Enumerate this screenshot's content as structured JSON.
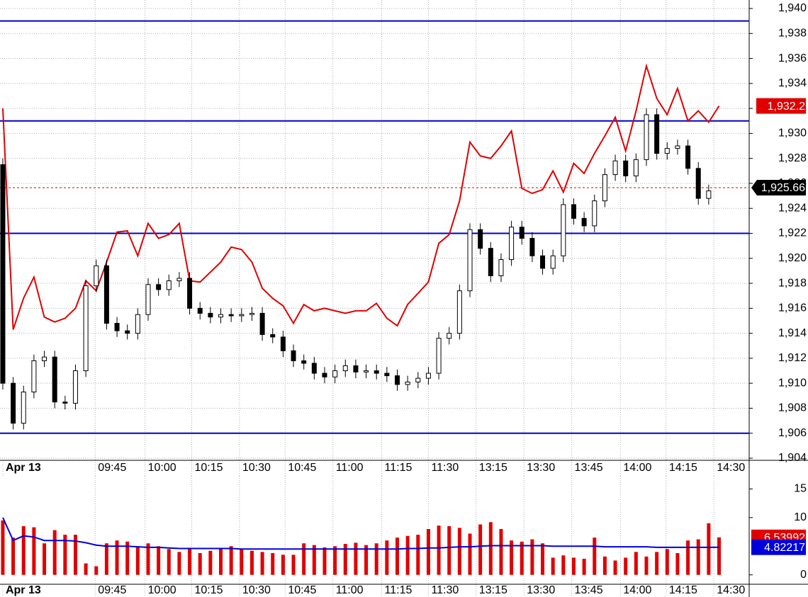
{
  "chart_data": [
    {
      "type": "candlestick",
      "xlim": [
        -0.27,
        71.9
      ],
      "xticks": [
        {
          "value": 0,
          "label": "Apr 13"
        },
        {
          "value": 8.9,
          "label": "09:45"
        },
        {
          "value": 13.7,
          "label": "10:00"
        },
        {
          "value": 18.2,
          "label": "10:15"
        },
        {
          "value": 22.8,
          "label": "10:30"
        },
        {
          "value": 27.2,
          "label": "10:45"
        },
        {
          "value": 31.8,
          "label": "11:00"
        },
        {
          "value": 36.5,
          "label": "11:15"
        },
        {
          "value": 41.0,
          "label": "11:30"
        },
        {
          "value": 45.6,
          "label": "13:15"
        },
        {
          "value": 50.2,
          "label": "13:30"
        },
        {
          "value": 54.8,
          "label": "13:45"
        },
        {
          "value": 59.5,
          "label": "14:00"
        },
        {
          "value": 63.9,
          "label": "14:15"
        },
        {
          "value": 68.5,
          "label": "14:30"
        }
      ],
      "ylim": [
        1903.83,
        1940.68
      ],
      "yticks": [
        {
          "value": 1904,
          "label": "1,904"
        },
        {
          "value": 1906,
          "label": "1,906"
        },
        {
          "value": 1908,
          "label": "1,908"
        },
        {
          "value": 1910,
          "label": "1,910"
        },
        {
          "value": 1912,
          "label": "1,912"
        },
        {
          "value": 1914,
          "label": "1,914"
        },
        {
          "value": 1916,
          "label": "1,916"
        },
        {
          "value": 1918,
          "label": "1,918"
        },
        {
          "value": 1920,
          "label": "1,920"
        },
        {
          "value": 1922,
          "label": "1,922"
        },
        {
          "value": 1924,
          "label": "1,924"
        },
        {
          "value": 1926,
          "label": "1,926"
        },
        {
          "value": 1928,
          "label": "1,928"
        },
        {
          "value": 1930,
          "label": "1,930"
        },
        {
          "value": 1932,
          "label": "1,932"
        },
        {
          "value": 1934,
          "label": "1,934"
        },
        {
          "value": 1936,
          "label": "1,936"
        },
        {
          "value": 1938,
          "label": "1,938"
        },
        {
          "value": 1940,
          "label": "1,940"
        }
      ],
      "grid": true,
      "candles": {
        "color_up": "#ffffff",
        "color_down": "#000000",
        "open": [
          1927.5,
          1910.0,
          1906.8,
          1909.3,
          1911.8,
          1912.1,
          1908.5,
          1908.4,
          1911.0,
          1917.8,
          1919.4,
          1914.8,
          1914.2,
          1914.0,
          1915.5,
          1917.9,
          1917.5,
          1918.2,
          1918.4,
          1916.0,
          1915.6,
          1915.3,
          1915.5,
          1915.4,
          1915.5,
          1915.6,
          1913.9,
          1913.7,
          1912.6,
          1911.8,
          1911.6,
          1910.8,
          1910.5,
          1911.0,
          1911.4,
          1910.9,
          1911.0,
          1910.8,
          1910.6,
          1909.9,
          1910.1,
          1910.4,
          1910.8,
          1913.6,
          1914.0,
          1917.4,
          1922.3,
          1920.8,
          1918.6,
          1919.9,
          1922.5,
          1921.6,
          1920.2,
          1919.2,
          1920.2,
          1924.3,
          1923.2,
          1922.6,
          1924.6,
          1926.7,
          1927.8,
          1926.6,
          1927.9,
          1931.5,
          1928.4,
          1928.8,
          1929.0,
          1927.2,
          1924.8,
          null
        ],
        "high": [
          1928.0,
          1910.5,
          1909.8,
          1912.3,
          1912.6,
          1912.6,
          1909.0,
          1911.5,
          1918.3,
          1919.9,
          1919.9,
          1915.3,
          1914.7,
          1916.0,
          1918.4,
          1918.4,
          1918.7,
          1918.9,
          1918.9,
          1916.5,
          1916.1,
          1916.0,
          1916.0,
          1916.0,
          1916.1,
          1916.1,
          1914.4,
          1914.2,
          1913.1,
          1912.3,
          1912.1,
          1911.3,
          1911.5,
          1911.9,
          1911.9,
          1911.5,
          1911.5,
          1911.3,
          1911.1,
          1910.6,
          1910.9,
          1911.3,
          1914.1,
          1914.5,
          1917.9,
          1922.8,
          1922.8,
          1921.3,
          1920.4,
          1923.0,
          1923.0,
          1922.1,
          1920.7,
          1920.7,
          1924.8,
          1924.8,
          1923.7,
          1925.1,
          1927.2,
          1928.3,
          1928.3,
          1928.4,
          1932.0,
          1932.0,
          1929.3,
          1929.5,
          1929.5,
          1927.7,
          1925.9,
          null
        ],
        "low": [
          1909.5,
          1906.3,
          1906.3,
          1908.8,
          1911.3,
          1908.0,
          1907.9,
          1907.9,
          1910.5,
          1917.3,
          1914.3,
          1913.7,
          1913.5,
          1913.5,
          1915.0,
          1917.0,
          1917.0,
          1917.7,
          1915.5,
          1915.1,
          1914.8,
          1914.8,
          1914.9,
          1914.9,
          1915.0,
          1913.4,
          1913.2,
          1912.1,
          1911.3,
          1911.1,
          1910.3,
          1910.0,
          1910.0,
          1910.5,
          1910.4,
          1910.4,
          1910.3,
          1910.1,
          1909.4,
          1909.4,
          1909.6,
          1909.9,
          1910.3,
          1913.1,
          1913.5,
          1916.9,
          1920.3,
          1918.1,
          1918.1,
          1919.4,
          1921.1,
          1919.7,
          1918.7,
          1918.7,
          1919.7,
          1922.7,
          1922.1,
          1922.1,
          1924.1,
          1926.2,
          1926.1,
          1926.1,
          1927.4,
          1927.9,
          1927.9,
          1928.3,
          1926.7,
          1924.3,
          1924.3,
          null
        ],
        "close": [
          1910.0,
          1906.8,
          1909.3,
          1911.8,
          1912.1,
          1908.5,
          1908.4,
          1911.0,
          1917.8,
          1919.4,
          1914.8,
          1914.2,
          1914.0,
          1915.5,
          1917.9,
          1917.5,
          1918.2,
          1918.4,
          1916.0,
          1915.6,
          1915.3,
          1915.5,
          1915.4,
          1915.5,
          1915.6,
          1913.9,
          1913.7,
          1912.6,
          1911.8,
          1911.6,
          1910.8,
          1910.5,
          1911.0,
          1911.4,
          1910.9,
          1911.0,
          1910.8,
          1910.6,
          1909.9,
          1910.1,
          1910.4,
          1910.8,
          1913.6,
          1914.0,
          1917.4,
          1922.3,
          1920.8,
          1918.6,
          1919.9,
          1922.5,
          1921.6,
          1920.2,
          1919.2,
          1920.2,
          1924.3,
          1923.2,
          1922.6,
          1924.6,
          1926.7,
          1927.8,
          1926.6,
          1927.9,
          1931.5,
          1928.4,
          1928.8,
          1929.0,
          1927.2,
          1924.8,
          1925.4,
          null
        ]
      },
      "overlay": {
        "color": "#e00000",
        "values": [
          1932.0,
          1914.3,
          1916.8,
          1918.5,
          1915.3,
          1914.9,
          1915.2,
          1916.0,
          1918.2,
          1917.4,
          1919.7,
          1922.1,
          1922.2,
          1920.2,
          1922.8,
          1921.6,
          1921.9,
          1922.8,
          1918.2,
          1918.1,
          1918.9,
          1919.7,
          1920.9,
          1920.7,
          1919.7,
          1917.6,
          1916.8,
          1916.2,
          1914.8,
          1916.3,
          1915.8,
          1916.0,
          1915.8,
          1915.6,
          1915.8,
          1915.8,
          1916.4,
          1915.2,
          1914.6,
          1916.3,
          1917.2,
          1918.1,
          1921.2,
          1921.9,
          1924.6,
          1929.3,
          1928.2,
          1928.0,
          1929.0,
          1930.2,
          1925.6,
          1925.2,
          1925.5,
          1927.0,
          1925.3,
          1927.6,
          1926.8,
          1928.4,
          1929.8,
          1931.3,
          1928.6,
          1931.8,
          1935.4,
          1932.8,
          1931.5,
          1933.6,
          1931.0,
          1931.8,
          1930.9,
          1932.2
        ]
      },
      "overlay_last": {
        "value": 1932.2,
        "label": "1,932.2"
      },
      "last_price": {
        "value": 1925.66,
        "label": "1,925.66"
      },
      "hlines": {
        "color": "#0000cc",
        "values": [
          1939.0,
          1931.0,
          1922.0,
          1906.0
        ]
      }
    },
    {
      "type": "bar",
      "xlim": [
        -0.27,
        71.9
      ],
      "xticks": [
        {
          "value": 0,
          "label": "Apr 13"
        },
        {
          "value": 8.9,
          "label": "09:45"
        },
        {
          "value": 13.7,
          "label": "10:00"
        },
        {
          "value": 18.2,
          "label": "10:15"
        },
        {
          "value": 22.8,
          "label": "10:30"
        },
        {
          "value": 27.2,
          "label": "10:45"
        },
        {
          "value": 31.8,
          "label": "11:00"
        },
        {
          "value": 36.5,
          "label": "11:15"
        },
        {
          "value": 41.0,
          "label": "11:30"
        },
        {
          "value": 45.6,
          "label": "13:15"
        },
        {
          "value": 50.2,
          "label": "13:30"
        },
        {
          "value": 54.8,
          "label": "13:45"
        },
        {
          "value": 59.5,
          "label": "14:00"
        },
        {
          "value": 63.9,
          "label": "14:15"
        },
        {
          "value": 68.5,
          "label": "14:30"
        }
      ],
      "ylim": [
        -1.64,
        17.27
      ],
      "yticks": [
        0,
        10,
        15
      ],
      "color": "#e00000",
      "values": [
        9.5,
        6.5,
        8.5,
        8.3,
        5.5,
        7.8,
        7.0,
        7.0,
        2.0,
        1.5,
        5.5,
        6.0,
        5.8,
        5.0,
        5.5,
        5.0,
        4.5,
        4.0,
        4.5,
        3.8,
        4.2,
        4.5,
        5.0,
        4.5,
        4.2,
        4.0,
        3.8,
        3.5,
        3.5,
        5.5,
        5.2,
        4.8,
        5.0,
        5.4,
        5.6,
        5.2,
        5.5,
        6.0,
        6.5,
        6.8,
        7.0,
        8.0,
        8.6,
        8.5,
        8.2,
        7.2,
        8.8,
        9.2,
        8.0,
        6.0,
        5.8,
        6.2,
        5.5,
        3.0,
        3.4,
        3.0,
        2.8,
        6.5,
        3.2,
        2.5,
        3.0,
        4.0,
        3.2,
        4.0,
        4.5,
        3.8,
        6.0,
        6.2,
        9.0,
        6.54
      ],
      "average": {
        "color": "#0000dd",
        "values": [
          10,
          6.0,
          6.8,
          6.6,
          6.0,
          6.0,
          6.0,
          5.9,
          5.6,
          5.2,
          5.0,
          5.0,
          5.0,
          4.9,
          4.8,
          4.8,
          4.7,
          4.6,
          4.6,
          4.6,
          4.6,
          4.6,
          4.6,
          4.5,
          4.5,
          4.5,
          4.5,
          4.5,
          4.5,
          4.5,
          4.5,
          4.5,
          4.5,
          4.5,
          4.5,
          4.5,
          4.5,
          4.5,
          4.5,
          4.6,
          4.6,
          4.7,
          4.7,
          4.8,
          4.9,
          4.9,
          5.0,
          5.1,
          5.1,
          5.1,
          5.1,
          5.1,
          5.1,
          5.0,
          5.0,
          5.0,
          5.0,
          5.0,
          4.9,
          4.9,
          4.9,
          4.9,
          4.9,
          4.8,
          4.8,
          4.8,
          4.8,
          4.8,
          4.8,
          4.82
        ]
      },
      "values_last": 6.53992,
      "average_last": 4.82217
    }
  ]
}
